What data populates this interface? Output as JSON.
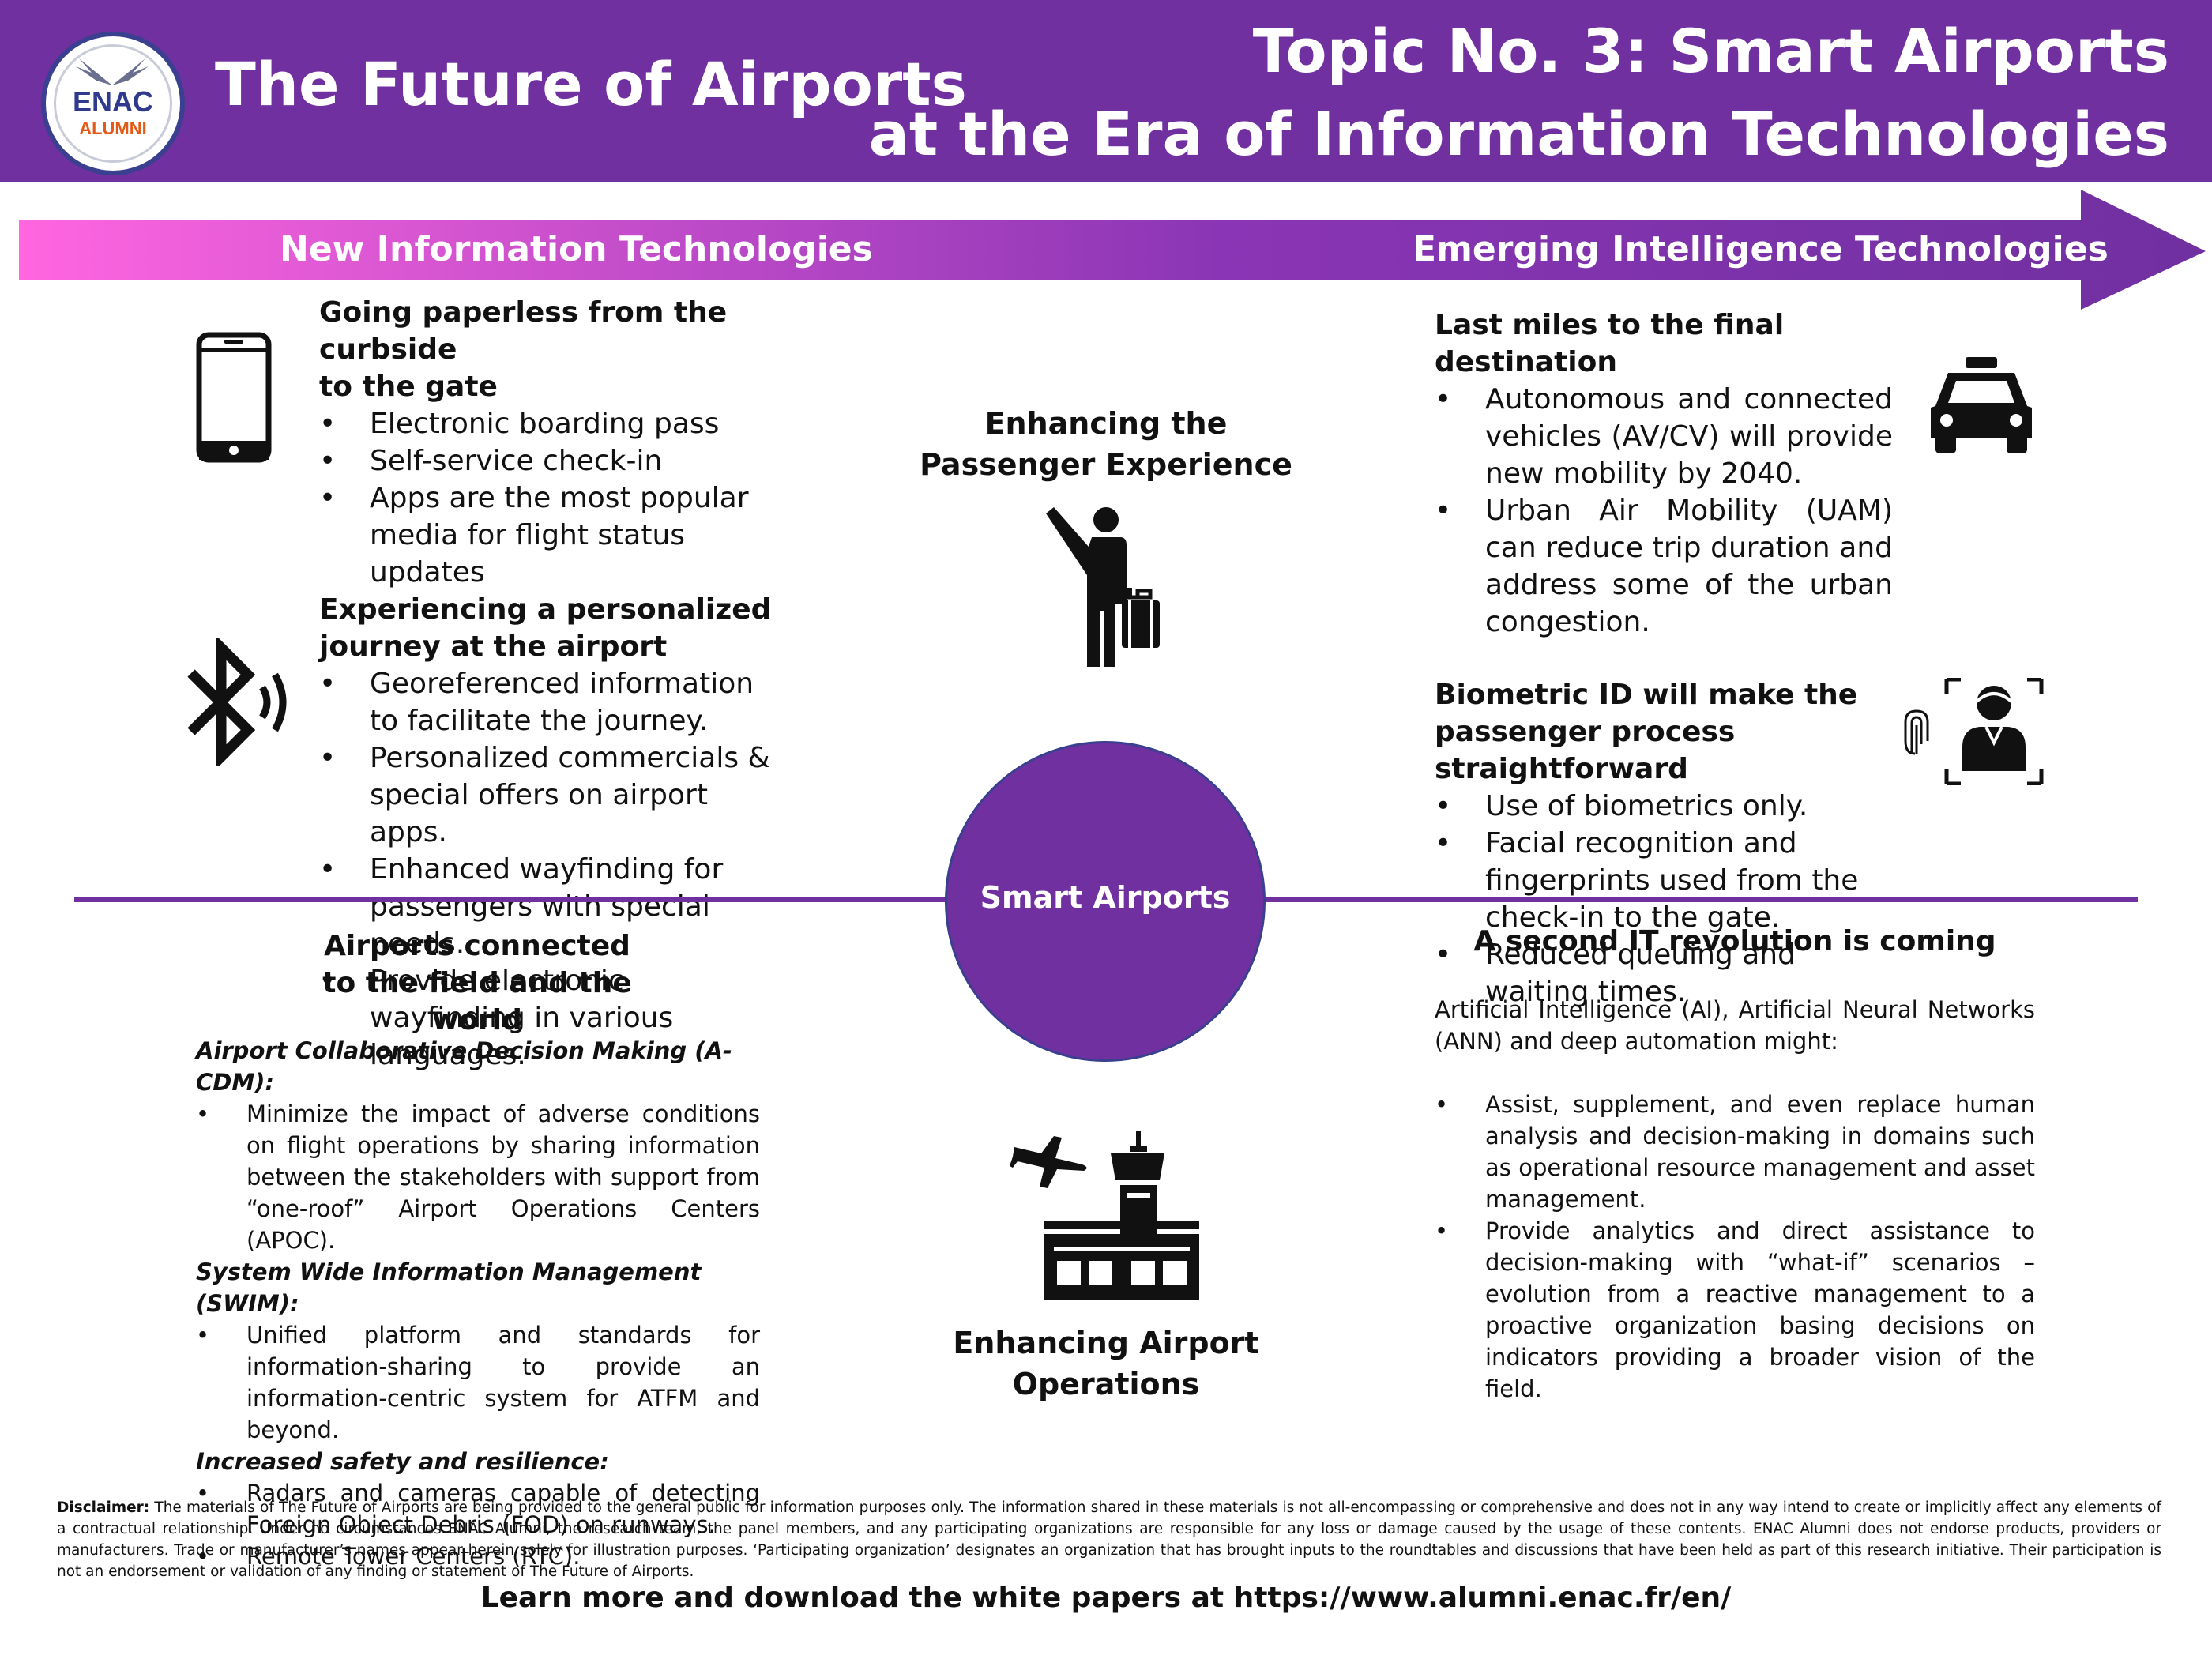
{
  "header": {
    "logo": {
      "line1": "ENAC",
      "line2": "ALUMNI"
    },
    "title": "The Future of Airports",
    "topic_line1": "Topic No. 3: Smart Airports",
    "topic_line2": "at the Era of Information Technologies"
  },
  "band": {
    "left_label": "New Information Technologies",
    "right_label": "Emerging Intelligence Technologies"
  },
  "left_top": {
    "s1_heading_1": "Going paperless from the curbside",
    "s1_heading_2": "to the gate",
    "s1_items": [
      "Electronic boarding pass",
      "Self-service check-in",
      "Apps are the most popular media for flight status updates"
    ],
    "s2_heading_1": "Experiencing a personalized",
    "s2_heading_2": "journey at the airport",
    "s2_items": [
      "Georeferenced information to facilitate the journey.",
      "Personalized commercials & special offers on airport apps.",
      "Enhanced wayfinding for passengers with special needs.",
      "Provide electronic wayfinding in various languages."
    ]
  },
  "center": {
    "top_1": "Enhancing the",
    "top_2": "Passenger Experience",
    "circle": "Smart Airports",
    "bottom_1": "Enhancing Airport",
    "bottom_2": "Operations"
  },
  "right_top": {
    "s1_heading": "Last miles to the final destination",
    "s1_items": [
      "Autonomous and connected vehicles (AV/CV) will provide new mobility by 2040.",
      "Urban Air Mobility (UAM) can reduce trip duration and address some of the urban congestion."
    ],
    "s2_heading_1": "Biometric ID will make the",
    "s2_heading_2": "passenger process straightforward",
    "s2_items": [
      "Use of biometrics only.",
      "Facial recognition and fingerprints used from the check-in to the gate.",
      "Reduced queuing and waiting times."
    ]
  },
  "left_bottom": {
    "heading_1": "Airports connected",
    "heading_2": "to the field and the world",
    "g1_title": "Airport Collaborative Decision Making (A-CDM):",
    "g1_items": [
      "Minimize the impact of adverse conditions on flight operations by sharing information between the stakeholders with support from “one-roof” Airport Operations Centers (APOC)."
    ],
    "g2_title": "System Wide Information Management (SWIM):",
    "g2_items": [
      "Unified platform and standards for information-sharing to provide an information-centric system for ATFM and beyond."
    ],
    "g3_title": "Increased safety and resilience:",
    "g3_items": [
      "Radars and cameras capable of detecting Foreign Object Debris (FOD) on runways.",
      "Remote Tower Centers (RTC)."
    ]
  },
  "right_bottom": {
    "heading": "A second IT revolution is coming",
    "intro": "Artificial Intelligence (AI), Artificial Neural Networks (ANN) and deep automation might:",
    "items": [
      "Assist, supplement, and even replace human analysis and decision-making in domains such as operational resource management and asset management.",
      "Provide analytics and direct assistance to decision-making with “what-if” scenarios – evolution from a reactive management to a proactive organization basing decisions on indicators providing a broader vision of the field."
    ]
  },
  "disclaimer": {
    "label": "Disclaimer:",
    "text": " The materials of The Future of Airports are being provided to the general public for information purposes only. The information shared in these materials is not all-encompassing or comprehensive and does not in any way intend to create or implicitly affect any elements of a contractual relationship. Under no circumstances ENAC Alumni, the research team, the panel members, and any participating organizations are responsible for any loss or damage caused by the usage of these contents. ENAC Alumni does not endorse products, providers or manufacturers. Trade or manufacturer’s names appear herein solely for illustration purposes. ‘Participating organization’ designates an organization that has brought inputs to the roundtables and discussions that have been held as part of this research initiative. Their participation is not an endorsement or validation of any finding or statement of The Future of Airports."
  },
  "footer": "Learn more and download the white papers at https://www.alumni.enac.fr/en/",
  "colors": {
    "brand_purple": "#7030a0",
    "band_pink": "#ff66e0"
  },
  "icons": [
    "smartphone-icon",
    "bluetooth-icon",
    "passenger-with-luggage-icon",
    "taxi-icon",
    "biometric-id-icon",
    "airport-tower-icon"
  ]
}
